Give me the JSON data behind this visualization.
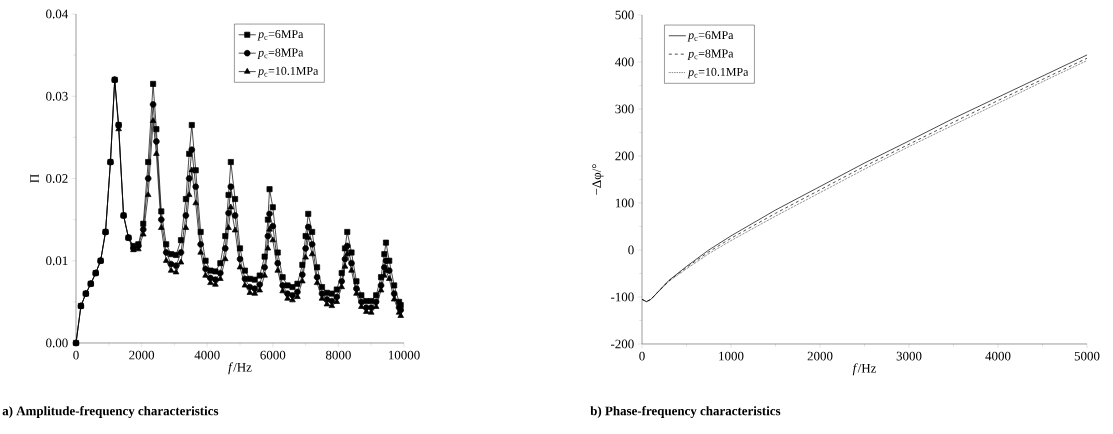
{
  "chart_data": [
    {
      "type": "line",
      "xlabel": "*f*/Hz",
      "ylabel": "Π",
      "annotations": [
        "a) Amplitude-frequency characteristics"
      ],
      "legend": "top",
      "grid": false,
      "x": [
        0,
        150,
        300,
        450,
        600,
        750,
        900,
        1050,
        1180,
        1300,
        1450,
        1600,
        1750,
        1900,
        2050,
        2200,
        2350,
        2450,
        2600,
        2750,
        2900,
        3050,
        3200,
        3350,
        3450,
        3530,
        3650,
        3800,
        3950,
        4100,
        4250,
        4400,
        4550,
        4650,
        4720,
        4850,
        5000,
        5150,
        5300,
        5450,
        5600,
        5750,
        5850,
        5900,
        6000,
        6150,
        6300,
        6450,
        6600,
        6750,
        6900,
        7000,
        7080,
        7200,
        7350,
        7500,
        7650,
        7800,
        7950,
        8100,
        8200,
        8270,
        8400,
        8550,
        8700,
        8850,
        9000,
        9150,
        9300,
        9400,
        9450,
        9550,
        9700,
        9850,
        9900
      ],
      "series": [
        {
          "name": "*p*$_{c}$=6MPa",
          "color": "#000000",
          "marker": "square",
          "line_style": "solid",
          "values": [
            0,
            0.0045,
            0.006,
            0.0072,
            0.0085,
            0.01,
            0.0135,
            0.022,
            0.032,
            0.0265,
            0.0155,
            0.0128,
            0.0118,
            0.012,
            0.0145,
            0.022,
            0.0315,
            0.026,
            0.016,
            0.012,
            0.0108,
            0.0107,
            0.0125,
            0.0175,
            0.023,
            0.0265,
            0.021,
            0.0135,
            0.01,
            0.0088,
            0.0087,
            0.0097,
            0.013,
            0.018,
            0.022,
            0.0175,
            0.0115,
            0.0088,
            0.0078,
            0.0077,
            0.0082,
            0.0105,
            0.015,
            0.0187,
            0.0165,
            0.011,
            0.008,
            0.007,
            0.0068,
            0.0072,
            0.0095,
            0.013,
            0.0157,
            0.0135,
            0.0092,
            0.0068,
            0.0061,
            0.006,
            0.0065,
            0.0085,
            0.0115,
            0.0135,
            0.011,
            0.0075,
            0.0058,
            0.0051,
            0.0051,
            0.0058,
            0.008,
            0.0108,
            0.0122,
            0.01,
            0.007,
            0.005,
            0.0046
          ]
        },
        {
          "name": "*p*$_{c}$=8MPa",
          "color": "#000000",
          "marker": "circle",
          "line_style": "solid",
          "values": [
            0,
            0.0045,
            0.006,
            0.0072,
            0.0085,
            0.01,
            0.0135,
            0.022,
            0.032,
            0.0265,
            0.0155,
            0.0128,
            0.0115,
            0.0118,
            0.0138,
            0.02,
            0.029,
            0.0245,
            0.015,
            0.011,
            0.0096,
            0.0094,
            0.011,
            0.0155,
            0.02,
            0.0235,
            0.019,
            0.012,
            0.009,
            0.0079,
            0.0077,
            0.0085,
            0.0115,
            0.0158,
            0.019,
            0.0155,
            0.0102,
            0.0078,
            0.0068,
            0.0066,
            0.0071,
            0.0092,
            0.013,
            0.0157,
            0.0142,
            0.0097,
            0.007,
            0.006,
            0.0058,
            0.0062,
            0.0083,
            0.0115,
            0.0141,
            0.012,
            0.008,
            0.006,
            0.0053,
            0.0051,
            0.0056,
            0.0075,
            0.0102,
            0.0118,
            0.0097,
            0.0066,
            0.005,
            0.0043,
            0.0043,
            0.005,
            0.007,
            0.0092,
            0.01,
            0.0088,
            0.006,
            0.0043,
            0.004
          ]
        },
        {
          "name": "*p*$_{c}$=10.1MPa",
          "color": "#000000",
          "marker": "triangle",
          "line_style": "solid",
          "values": [
            0,
            0.0045,
            0.006,
            0.0072,
            0.0085,
            0.01,
            0.0135,
            0.022,
            0.032,
            0.026,
            0.0155,
            0.0128,
            0.0113,
            0.0114,
            0.0132,
            0.018,
            0.027,
            0.023,
            0.014,
            0.01,
            0.0088,
            0.0086,
            0.0098,
            0.014,
            0.018,
            0.021,
            0.017,
            0.011,
            0.0082,
            0.0073,
            0.0071,
            0.0078,
            0.0102,
            0.014,
            0.0165,
            0.0137,
            0.0092,
            0.007,
            0.0061,
            0.006,
            0.0064,
            0.0082,
            0.0115,
            0.0138,
            0.0125,
            0.0088,
            0.0063,
            0.0054,
            0.0052,
            0.0056,
            0.0075,
            0.0104,
            0.0128,
            0.0108,
            0.0073,
            0.0054,
            0.0047,
            0.0045,
            0.005,
            0.0068,
            0.0093,
            0.0108,
            0.0088,
            0.006,
            0.0044,
            0.0038,
            0.0037,
            0.0044,
            0.0064,
            0.0082,
            0.0088,
            0.0078,
            0.0053,
            0.0037,
            0.0033
          ]
        }
      ],
      "xlim": [
        0,
        10000
      ],
      "ylim": [
        0,
        0.04
      ],
      "xticks": [
        0,
        2000,
        4000,
        6000,
        8000,
        10000
      ],
      "yticks": [
        {
          "value": 0,
          "label": "0.00"
        },
        {
          "value": 0.01,
          "label": "0.01"
        },
        {
          "value": 0.02,
          "label": "0.02"
        },
        {
          "value": 0.03,
          "label": "0.03"
        },
        {
          "value": 0.04,
          "label": "0.04"
        }
      ]
    },
    {
      "type": "line",
      "xlabel": "*f*/Hz",
      "ylabel": "−Δφ/°",
      "annotations": [
        "b) Phase-frequency characteristics"
      ],
      "legend": "top left",
      "grid": false,
      "x": [
        0,
        50,
        100,
        200,
        300,
        500,
        750,
        1000,
        1500,
        2000,
        2500,
        3000,
        3500,
        4000,
        4500,
        5000
      ],
      "series": [
        {
          "name": "*p*$_{c}$=6MPa",
          "color": "#000000",
          "marker": "none",
          "line_style": "solid",
          "values": [
            -105,
            -110,
            -105,
            -85,
            -65,
            -35,
            0,
            30,
            85,
            135,
            185,
            232,
            280,
            325,
            370,
            415
          ]
        },
        {
          "name": "*p*$_{c}$=8MPa",
          "color": "#000000",
          "marker": "none",
          "line_style": "dashed",
          "values": [
            -105,
            -110,
            -105,
            -85,
            -66,
            -37,
            -4,
            25,
            78,
            128,
            178,
            225,
            272,
            318,
            363,
            408
          ]
        },
        {
          "name": "*p*$_{c}$=10.1MPa",
          "color": "#000000",
          "marker": "none",
          "line_style": "dotted",
          "values": [
            -105,
            -110,
            -105,
            -86,
            -67,
            -40,
            -8,
            20,
            72,
            122,
            172,
            220,
            266,
            312,
            358,
            403
          ]
        }
      ],
      "xlim": [
        0,
        5000
      ],
      "ylim": [
        -200,
        500
      ],
      "xticks": [
        0,
        1000,
        2000,
        3000,
        4000,
        5000
      ],
      "yticks": [
        -200,
        -100,
        0,
        100,
        200,
        300,
        400,
        500
      ]
    }
  ]
}
